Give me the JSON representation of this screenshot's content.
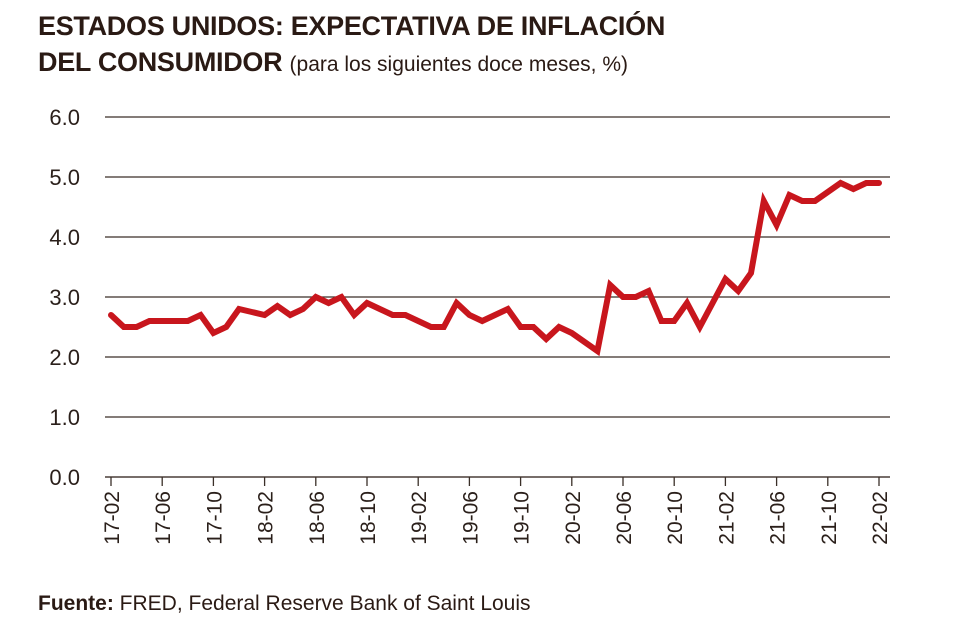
{
  "title": {
    "line1": "ESTADOS UNIDOS: EXPECTATIVA DE INFLACIÓN",
    "line2": "DEL CONSUMIDOR",
    "subtitle": "(para los siguientes doce meses, %)"
  },
  "source": {
    "label": "Fuente:",
    "text": "FRED, Federal Reserve Bank of Saint Louis"
  },
  "chart_data": {
    "type": "line",
    "title": "ESTADOS UNIDOS: EXPECTATIVA DE INFLACIÓN DEL CONSUMIDOR (para los siguientes doce meses, %)",
    "xlabel": "",
    "ylabel": "",
    "ylim": [
      0,
      6
    ],
    "yticks": [
      "0.0",
      "1.0",
      "2.0",
      "3.0",
      "4.0",
      "5.0",
      "6.0"
    ],
    "xtick_labels": [
      "17-02",
      "17-06",
      "17-10",
      "18-02",
      "18-06",
      "18-10",
      "19-02",
      "19-06",
      "19-10",
      "20-02",
      "20-06",
      "20-10",
      "21-02",
      "21-06",
      "21-10",
      "22-02"
    ],
    "grid": "horizontal",
    "line_color": "#c8161d",
    "x_start": "17-02",
    "x_end": "22-02",
    "frequency": "monthly",
    "values": [
      2.7,
      2.5,
      2.5,
      2.6,
      2.6,
      2.6,
      2.6,
      2.7,
      2.4,
      2.5,
      2.8,
      2.75,
      2.7,
      2.85,
      2.7,
      2.8,
      3.0,
      2.9,
      3.0,
      2.7,
      2.9,
      2.8,
      2.7,
      2.7,
      2.6,
      2.5,
      2.5,
      2.9,
      2.7,
      2.6,
      2.7,
      2.8,
      2.5,
      2.5,
      2.3,
      2.5,
      2.4,
      2.25,
      2.1,
      3.2,
      3.0,
      3.0,
      3.1,
      2.6,
      2.6,
      2.9,
      2.5,
      2.9,
      3.3,
      3.1,
      3.4,
      4.6,
      4.2,
      4.7,
      4.6,
      4.6,
      4.75,
      4.9,
      4.8,
      4.9,
      4.9
    ]
  }
}
